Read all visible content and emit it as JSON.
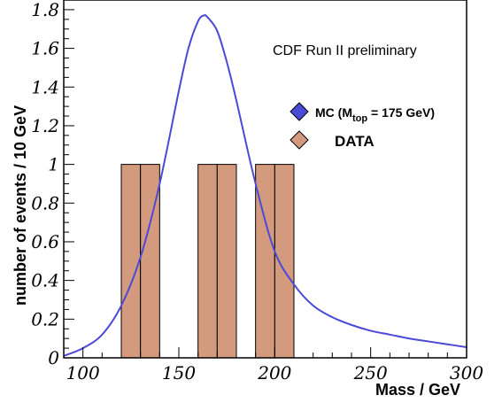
{
  "chart_data": {
    "type": "bar",
    "title": "",
    "annotation": "CDF Run II preliminary",
    "xlabel": "Mass / GeV",
    "ylabel": "number of events / 10 GeV",
    "xlim": [
      90,
      300
    ],
    "ylim": [
      0,
      1.85
    ],
    "xticks": [
      100,
      150,
      200,
      250,
      300
    ],
    "xtick_labels": [
      "100",
      "150",
      "200",
      "250",
      "300"
    ],
    "yticks": [
      0,
      0.2,
      0.4,
      0.6,
      0.8,
      1,
      1.2,
      1.4,
      1.6,
      1.8
    ],
    "ytick_labels": [
      "0",
      "0.2",
      "0.4",
      "0.6",
      "0.8",
      "1",
      "1.2",
      "1.4",
      "1.6",
      "1.8"
    ],
    "grid": false,
    "legend_position": "top-right",
    "series": [
      {
        "name": "MC (M",
        "name_sub": "top",
        "name_tail": " = 175 GeV)",
        "kind": "line",
        "color": "#4a4ad6",
        "x": [
          90,
          100,
          110,
          120,
          130,
          140,
          150,
          155,
          160,
          163,
          165,
          170,
          175,
          180,
          190,
          200,
          210,
          220,
          230,
          240,
          250,
          260,
          270,
          280,
          290,
          300
        ],
        "y": [
          0.01,
          0.05,
          0.12,
          0.27,
          0.52,
          0.9,
          1.38,
          1.6,
          1.74,
          1.77,
          1.76,
          1.69,
          1.53,
          1.33,
          0.9,
          0.55,
          0.38,
          0.27,
          0.21,
          0.17,
          0.14,
          0.12,
          0.1,
          0.085,
          0.07,
          0.055
        ]
      },
      {
        "name": "DATA",
        "kind": "histogram",
        "color": "#d49a7e",
        "bin_width": 10,
        "bin_starts": [
          120,
          130,
          160,
          170,
          190,
          200
        ],
        "values": [
          1,
          1,
          1,
          1,
          1,
          1
        ]
      }
    ]
  }
}
